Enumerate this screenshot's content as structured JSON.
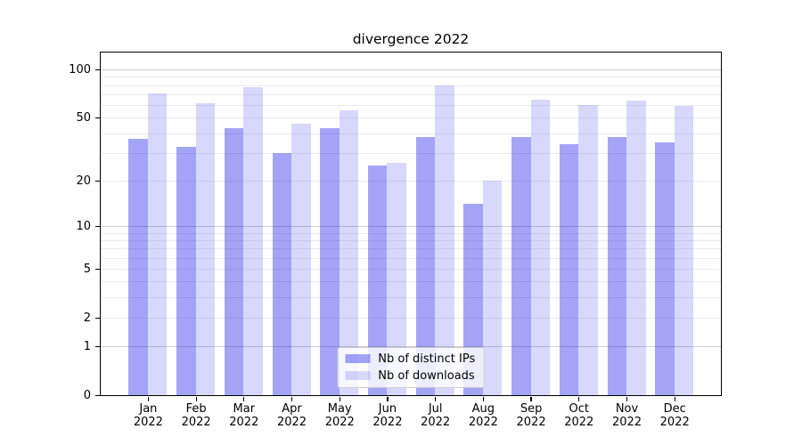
{
  "chart_data": {
    "type": "bar",
    "title": "divergence 2022",
    "categories": [
      "Jan",
      "Feb",
      "Mar",
      "Apr",
      "May",
      "Jun",
      "Jul",
      "Aug",
      "Sep",
      "Oct",
      "Nov",
      "Dec"
    ],
    "year": "2022",
    "series": [
      {
        "name": "Nb of distinct IPs",
        "color": "rgba(15,15,235,0.38)",
        "values": [
          37,
          33,
          43,
          30,
          43,
          25,
          38,
          14,
          38,
          34,
          38,
          35
        ]
      },
      {
        "name": "Nb of downloads",
        "color": "rgba(15,15,235,0.16)",
        "values": [
          71,
          62,
          78,
          46,
          56,
          26,
          80,
          20,
          65,
          60,
          64,
          59
        ]
      }
    ],
    "xlabel": "",
    "ylabel": "",
    "yscale": "symlog",
    "ylim": [
      0,
      128
    ],
    "yticks": [
      100,
      50,
      20,
      10,
      5,
      2,
      1,
      0
    ],
    "grid": {
      "major": [
        1,
        10,
        100
      ],
      "minor": [
        2,
        3,
        4,
        5,
        6,
        7,
        8,
        9,
        20,
        30,
        40,
        50,
        60,
        70,
        80,
        90
      ],
      "major_color": "#d0d0d0",
      "minor_color": "#ececec"
    },
    "legend": {
      "position": "lower center",
      "entries": [
        "Nb of distinct IPs",
        "Nb of downloads"
      ]
    }
  }
}
